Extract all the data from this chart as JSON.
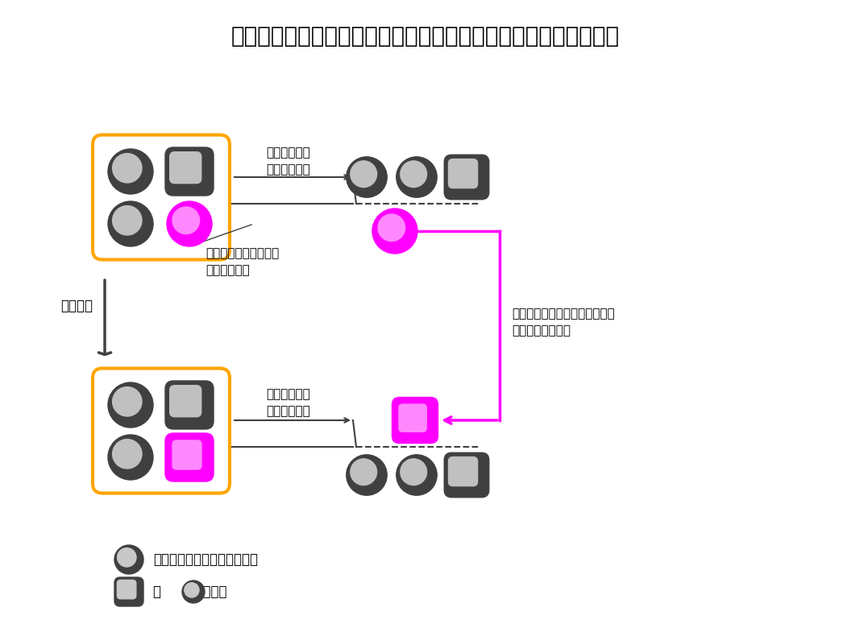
{
  "title": "安定同位体標識プローブ分子：注目する脂質の変化を追うツール",
  "title_fontsize": 20,
  "background_color": "#ffffff",
  "text_color": "#000000",
  "orange_box_color": "#FFA500",
  "magenta_color": "#FF00FF",
  "gray_dark": "#404040",
  "gray_light": "#909090",
  "gray_mid": "#606060",
  "label_jikantaikei": "時間経過",
  "label_mass1": "質量分析器で\n分離して検出",
  "label_mass2": "質量分析器で\n分離して検出",
  "label_probe": "安定同位体で標識した\nプローブ分子",
  "label_track": "標識したプローブ分子の変化に\n特化して追跡可能",
  "legend1": "：生体に存在する未標識分子",
  "legend2": "：      の代謝産物"
}
